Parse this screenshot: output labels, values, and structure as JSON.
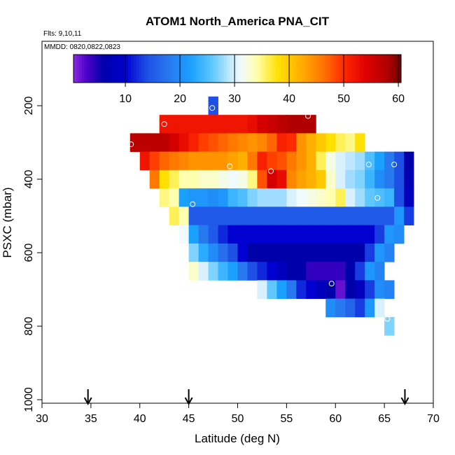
{
  "chart_data": {
    "type": "heatmap",
    "title": "ATOM1 North_America PNA_CIT",
    "flights_note": "Flts: 9,10,11",
    "dates_note": "MMDD: 0820,0822,0823",
    "xlabel": "Latitude (deg N)",
    "ylabel": "PSXC (mbar)",
    "xlim": [
      30,
      70
    ],
    "ylim": [
      1000,
      0
    ],
    "x_ticks": [
      30,
      35,
      40,
      45,
      50,
      55,
      60,
      65,
      70
    ],
    "y_ticks": [
      200,
      400,
      600,
      800,
      1000
    ],
    "colorbar": {
      "range": [
        0.5,
        60.5
      ],
      "ticks": [
        10,
        20,
        30,
        40,
        50,
        60
      ],
      "stops": [
        [
          0.5,
          "#8a2be2"
        ],
        [
          3,
          "#4b00c8"
        ],
        [
          6,
          "#0000aa"
        ],
        [
          10,
          "#0000d0"
        ],
        [
          14,
          "#1e50e6"
        ],
        [
          18,
          "#2878f0"
        ],
        [
          22,
          "#1aa0ff"
        ],
        [
          26,
          "#60c8ff"
        ],
        [
          29,
          "#bfe6ff"
        ],
        [
          31,
          "#f0faff"
        ],
        [
          34,
          "#ffffb0"
        ],
        [
          38,
          "#ffe000"
        ],
        [
          42,
          "#ffb000"
        ],
        [
          46,
          "#ff7800"
        ],
        [
          50,
          "#ff2a00"
        ],
        [
          54,
          "#e00000"
        ],
        [
          58,
          "#b00000"
        ],
        [
          60.5,
          "#700000"
        ]
      ]
    },
    "cell_width_deg": 1,
    "cell_height_mbar": 25,
    "rows": [
      {
        "p": 175,
        "x0": 47,
        "v": [
          14
        ]
      },
      {
        "p": 200,
        "x0": 47,
        "v": [
          14
        ]
      },
      {
        "p": 225,
        "x0": 42,
        "v": [
          52,
          52,
          52,
          52,
          52,
          52,
          52,
          52,
          52,
          53,
          55,
          56,
          57,
          58,
          58,
          58
        ]
      },
      {
        "p": 250,
        "x0": 42,
        "v": [
          52,
          52,
          52,
          52,
          52,
          52,
          52,
          52,
          52,
          53,
          55,
          56,
          57,
          58,
          58,
          58
        ]
      },
      {
        "p": 275,
        "x0": 39,
        "v": [
          57,
          57,
          57,
          57,
          55,
          53,
          51,
          49,
          48,
          47,
          46,
          45,
          44,
          45,
          47,
          51,
          50,
          44,
          42,
          40,
          38,
          36,
          35,
          38
        ]
      },
      {
        "p": 300,
        "x0": 39,
        "v": [
          57,
          57,
          57,
          57,
          55,
          53,
          51,
          49,
          48,
          47,
          46,
          45,
          44,
          45,
          47,
          51,
          50,
          44,
          42,
          40,
          38,
          36,
          35,
          38
        ]
      },
      {
        "p": 325,
        "x0": 40,
        "v": [
          52,
          49,
          47,
          46,
          45,
          44,
          44,
          44,
          44,
          43,
          42,
          46,
          51,
          49,
          48,
          46,
          44,
          42,
          36,
          32,
          30,
          29,
          28,
          25,
          22,
          18,
          14,
          6
        ]
      },
      {
        "p": 350,
        "x0": 40,
        "v": [
          52,
          49,
          47,
          46,
          45,
          44,
          44,
          44,
          44,
          43,
          42,
          46,
          51,
          49,
          48,
          46,
          44,
          42,
          36,
          32,
          30,
          29,
          28,
          25,
          22,
          18,
          14,
          6
        ]
      },
      {
        "p": 375,
        "x0": 41,
        "v": [
          46,
          38,
          36,
          34,
          34,
          33,
          33,
          32,
          31,
          32,
          35,
          48,
          55,
          53,
          45,
          43,
          42,
          40,
          33,
          30,
          28,
          27,
          24,
          20,
          18,
          14,
          7
        ]
      },
      {
        "p": 400,
        "x0": 41,
        "v": [
          46,
          38,
          36,
          34,
          34,
          33,
          33,
          32,
          31,
          32,
          35,
          48,
          55,
          53,
          45,
          43,
          42,
          40,
          33,
          30,
          28,
          27,
          24,
          20,
          18,
          14,
          7
        ]
      },
      {
        "p": 425,
        "x0": 42,
        "v": [
          35,
          34,
          22,
          21,
          21,
          20,
          21,
          24,
          25,
          27,
          28,
          28,
          28,
          30,
          31,
          32,
          33,
          34,
          36,
          30,
          28,
          26,
          25,
          24,
          14,
          8
        ]
      },
      {
        "p": 450,
        "x0": 42,
        "v": [
          35,
          34,
          22,
          21,
          21,
          20,
          21,
          24,
          25,
          27,
          28,
          28,
          28,
          30,
          31,
          32,
          33,
          34,
          36,
          30,
          28,
          26,
          25,
          24,
          14,
          8
        ]
      },
      {
        "p": 475,
        "x0": 43,
        "v": [
          36,
          34,
          15,
          15,
          15,
          15,
          15,
          15,
          15,
          15,
          15,
          15,
          15,
          15,
          15,
          15,
          15,
          15,
          15,
          15,
          15,
          15,
          15,
          21,
          13
        ]
      },
      {
        "p": 500,
        "x0": 43,
        "v": [
          36,
          34,
          15,
          15,
          15,
          15,
          15,
          15,
          15,
          15,
          15,
          15,
          15,
          15,
          15,
          15,
          15,
          15,
          15,
          15,
          15,
          15,
          15,
          21,
          13
        ]
      },
      {
        "p": 525,
        "x0": 44,
        "v": [
          31,
          22,
          18,
          15,
          12,
          10,
          10,
          10,
          10,
          10,
          10,
          10,
          10,
          10,
          10,
          10,
          10,
          10,
          10,
          10,
          13,
          21,
          20
        ]
      },
      {
        "p": 550,
        "x0": 44,
        "v": [
          31,
          22,
          18,
          15,
          12,
          10,
          10,
          10,
          10,
          10,
          10,
          10,
          10,
          10,
          10,
          10,
          10,
          10,
          10,
          10,
          13,
          21,
          20
        ]
      },
      {
        "p": 575,
        "x0": 45,
        "v": [
          27,
          23,
          20,
          17,
          14,
          10,
          6,
          6,
          6,
          6,
          6,
          6,
          6,
          6,
          6,
          6,
          6,
          6,
          13,
          21,
          19
        ]
      },
      {
        "p": 600,
        "x0": 45,
        "v": [
          27,
          23,
          20,
          17,
          14,
          10,
          6,
          6,
          6,
          6,
          6,
          6,
          6,
          6,
          6,
          6,
          6,
          6,
          13,
          21,
          19
        ]
      },
      {
        "p": 625,
        "x0": 45,
        "v": [
          33,
          30,
          27,
          24,
          22,
          18,
          14,
          12,
          10,
          8,
          6,
          6,
          4,
          4,
          4,
          4,
          6,
          13,
          21,
          19
        ]
      },
      {
        "p": 650,
        "x0": 45,
        "v": [
          33,
          30,
          27,
          24,
          22,
          18,
          14,
          12,
          10,
          8,
          6,
          6,
          4,
          4,
          4,
          4,
          6,
          13,
          21,
          19
        ]
      },
      {
        "p": 675,
        "x0": 52,
        "v": [
          30,
          26,
          22,
          18,
          12,
          10,
          8,
          6,
          2,
          6,
          8,
          13,
          20,
          19
        ]
      },
      {
        "p": 700,
        "x0": 52,
        "v": [
          30,
          26,
          22,
          18,
          12,
          10,
          8,
          6,
          2,
          6,
          8,
          13,
          20,
          19
        ]
      },
      {
        "p": 725,
        "x0": 59,
        "v": [
          20,
          18,
          16,
          13,
          21,
          30
        ]
      },
      {
        "p": 750,
        "x0": 59,
        "v": [
          20,
          18,
          16,
          13,
          21,
          30
        ]
      },
      {
        "p": 775,
        "x0": 65,
        "v": [
          27
        ]
      },
      {
        "p": 800,
        "x0": 65,
        "v": [
          27
        ]
      }
    ],
    "markers": [
      {
        "lat": 39.1,
        "p": 305
      },
      {
        "lat": 42.5,
        "p": 250
      },
      {
        "lat": 47.4,
        "p": 206
      },
      {
        "lat": 51.8,
        "p": 213
      },
      {
        "lat": 57.2,
        "p": 228
      },
      {
        "lat": 49.2,
        "p": 365
      },
      {
        "lat": 53.4,
        "p": 378
      },
      {
        "lat": 58.5,
        "p": 436
      },
      {
        "lat": 45.4,
        "p": 468
      },
      {
        "lat": 63.4,
        "p": 360
      },
      {
        "lat": 66.0,
        "p": 360
      },
      {
        "lat": 64.3,
        "p": 451
      },
      {
        "lat": 59.6,
        "p": 684
      },
      {
        "lat": 65.3,
        "p": 780
      }
    ],
    "arrows": [
      34.7,
      45.0,
      67.1
    ]
  }
}
